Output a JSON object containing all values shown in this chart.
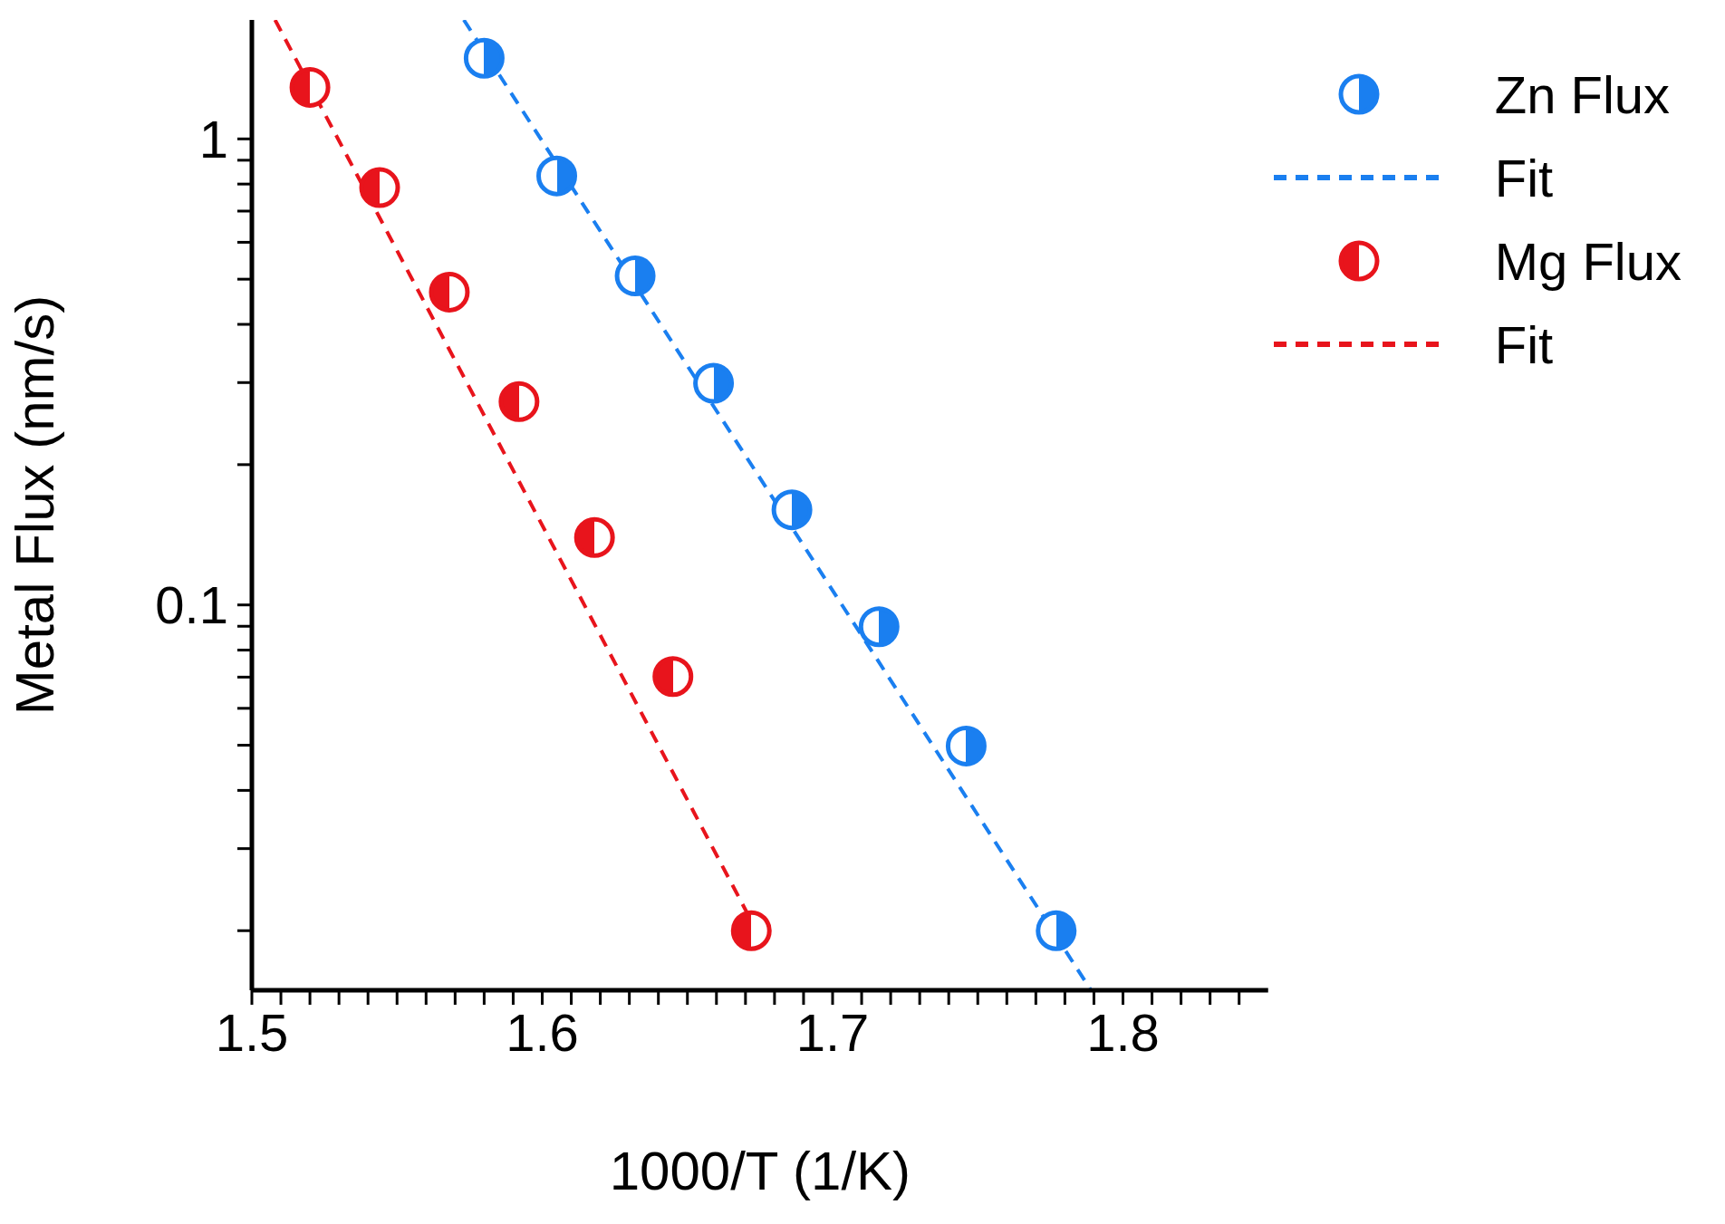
{
  "chart_data": {
    "type": "scatter",
    "xlabel": "1000/T (1/K)",
    "ylabel": "Metal Flux  (nm/s)",
    "log": "y",
    "grid": false,
    "legend": "top right",
    "xlim": [
      1.5,
      1.85
    ],
    "xticks": [
      1.5,
      {
        "value": 1.51,
        "label": null
      },
      {
        "value": 1.52,
        "label": null
      },
      {
        "value": 1.53,
        "label": null
      },
      {
        "value": 1.54,
        "label": null
      },
      {
        "value": 1.55,
        "label": null
      },
      {
        "value": 1.56,
        "label": null
      },
      {
        "value": 1.57,
        "label": null
      },
      {
        "value": 1.58,
        "label": null
      },
      {
        "value": 1.59,
        "label": null
      },
      1.6,
      {
        "value": 1.61,
        "label": null
      },
      {
        "value": 1.62,
        "label": null
      },
      {
        "value": 1.63,
        "label": null
      },
      {
        "value": 1.64,
        "label": null
      },
      {
        "value": 1.65,
        "label": null
      },
      {
        "value": 1.66,
        "label": null
      },
      {
        "value": 1.67,
        "label": null
      },
      {
        "value": 1.68,
        "label": null
      },
      {
        "value": 1.69,
        "label": null
      },
      1.7,
      {
        "value": 1.71,
        "label": null
      },
      {
        "value": 1.72,
        "label": null
      },
      {
        "value": 1.73,
        "label": null
      },
      {
        "value": 1.74,
        "label": null
      },
      {
        "value": 1.75,
        "label": null
      },
      {
        "value": 1.76,
        "label": null
      },
      {
        "value": 1.77,
        "label": null
      },
      {
        "value": 1.78,
        "label": null
      },
      {
        "value": 1.79,
        "label": null
      },
      1.8,
      {
        "value": 1.81,
        "label": null
      },
      {
        "value": 1.82,
        "label": null
      },
      {
        "value": 1.83,
        "label": null
      },
      {
        "value": 1.84,
        "label": null
      }
    ],
    "ylim": [
      0.0149,
      1.8
    ],
    "yticks": [
      {
        "value": 0.02,
        "label": null
      },
      {
        "value": 0.03,
        "label": null
      },
      {
        "value": 0.04,
        "label": null
      },
      {
        "value": 0.05,
        "label": null
      },
      {
        "value": 0.06,
        "label": null
      },
      {
        "value": 0.07,
        "label": null
      },
      {
        "value": 0.08,
        "label": null
      },
      {
        "value": 0.09,
        "label": null
      },
      0.1,
      {
        "value": 0.2,
        "label": null
      },
      {
        "value": 0.3,
        "label": null
      },
      {
        "value": 0.4,
        "label": null
      },
      {
        "value": 0.5,
        "label": null
      },
      {
        "value": 0.6,
        "label": null
      },
      {
        "value": 0.7,
        "label": null
      },
      {
        "value": 0.8,
        "label": null
      },
      {
        "value": 0.9,
        "label": null
      },
      1
    ],
    "series": [
      {
        "name": "Zn Flux",
        "type": "scatter",
        "marker": "circle",
        "color": "#1a7ff0",
        "x": [
          1.58,
          1.605,
          1.632,
          1.659,
          1.686,
          1.716,
          1.746,
          1.777
        ],
        "values": [
          1.49,
          0.833,
          0.508,
          0.299,
          0.16,
          0.0898,
          0.0498,
          0.02
        ]
      },
      {
        "name": "Fit",
        "type": "line",
        "line_style": "dashed",
        "marker": "none",
        "color": "#1a7ff0",
        "x": [
          1.573,
          1.789
        ],
        "values": [
          1.8,
          0.0149
        ]
      },
      {
        "name": "Mg Flux",
        "type": "scatter",
        "marker": "circle",
        "color": "#e8141c",
        "x": [
          1.52,
          1.544,
          1.568,
          1.592,
          1.618,
          1.645,
          1.672
        ],
        "values": [
          1.29,
          0.786,
          0.469,
          0.273,
          0.1395,
          0.0702,
          0.02
        ]
      },
      {
        "name": "Fit",
        "type": "line",
        "line_style": "dashed",
        "marker": "none",
        "color": "#e8141c",
        "x": [
          1.508,
          1.672
        ],
        "values": [
          1.8,
          0.021
        ]
      }
    ]
  }
}
